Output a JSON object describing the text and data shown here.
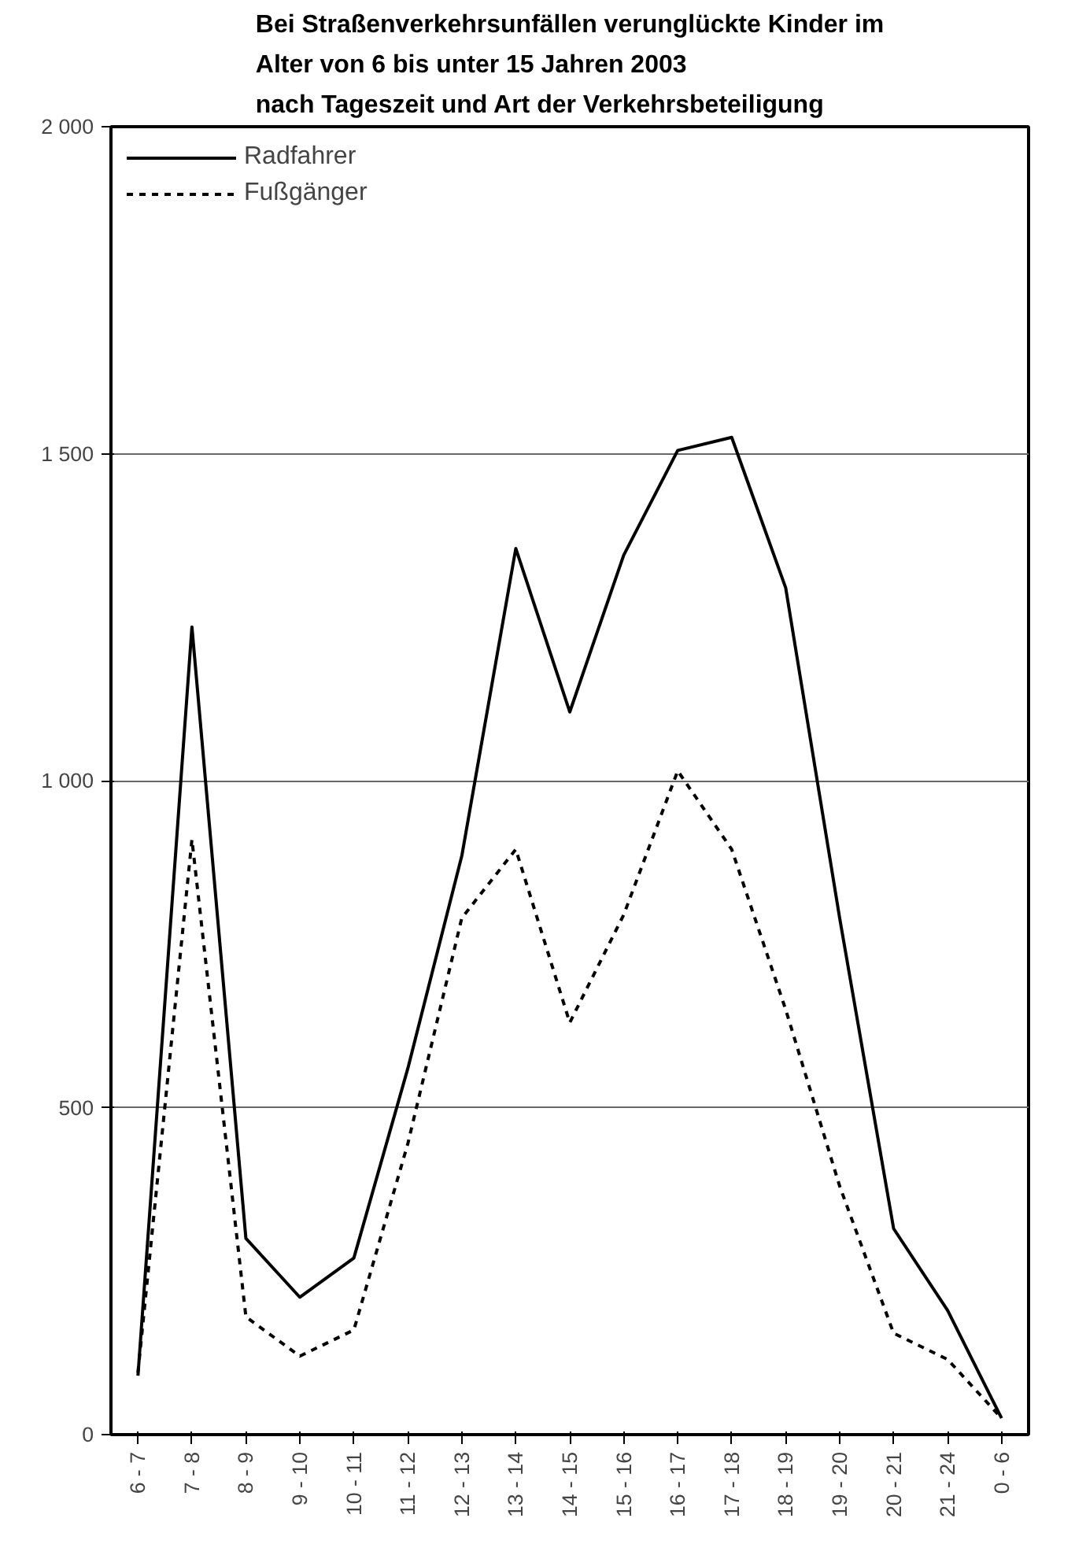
{
  "chart_data": {
    "type": "line",
    "title": "Bei Straßenverkehrsunfällen verunglückte Kinder im\nAlter von 6 bis unter 15 Jahren 2003\nnach Tageszeit und Art der Verkehrsbeteiligung",
    "categories": [
      "6 - 7",
      "7 - 8",
      "8 - 9",
      "9 - 10",
      "10 - 11",
      "11 - 12",
      "12 - 13",
      "13 - 14",
      "14 - 15",
      "15 - 16",
      "16 - 17",
      "17 - 18",
      "18 - 19",
      "19 - 20",
      "20 - 21",
      "21 - 24",
      "0 - 6"
    ],
    "series": [
      {
        "name": "Radfahrer",
        "color": "#000000",
        "line_style": "solid",
        "values": [
          90,
          1235,
          300,
          210,
          270,
          560,
          885,
          1355,
          1105,
          1345,
          1505,
          1525,
          1295,
          790,
          315,
          190,
          25
        ]
      },
      {
        "name": "Fußgänger",
        "color": "#000000",
        "line_style": "dashed",
        "values": [
          95,
          910,
          180,
          120,
          160,
          445,
          790,
          895,
          630,
          795,
          1015,
          895,
          650,
          380,
          155,
          115,
          25
        ]
      }
    ],
    "ylim": [
      0,
      2000
    ],
    "yticks": [
      {
        "value": 0,
        "label": "0"
      },
      {
        "value": 500,
        "label": "500"
      },
      {
        "value": 1000,
        "label": "1 000"
      },
      {
        "value": 1500,
        "label": "1 500"
      },
      {
        "value": 2000,
        "label": "2 000"
      }
    ],
    "grid": "y",
    "legend": "top left"
  }
}
